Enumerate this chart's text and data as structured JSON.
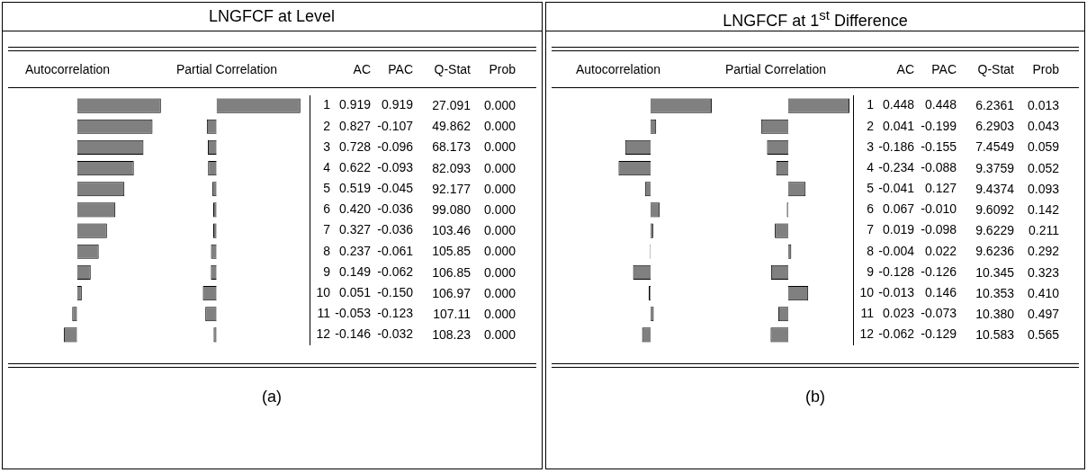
{
  "chart_data": [
    {
      "type": "bar",
      "orientation": "horizontal",
      "title": "Autocorrelation",
      "categories": [
        "1",
        "2",
        "3",
        "4",
        "5",
        "6",
        "7",
        "8",
        "9",
        "10",
        "11",
        "12"
      ],
      "tick_labels": "y",
      "legend": false,
      "series": [
        {
          "name": "AC",
          "color": "#808080",
          "values": [
            0.919,
            0.827,
            0.728,
            0.622,
            0.519,
            0.42,
            0.327,
            0.237,
            0.149,
            0.051,
            -0.053,
            -0.146
          ],
          "value_labels": [
            "0.919",
            "0.827",
            "0.728",
            "0.622",
            "0.519",
            "0.420",
            "0.327",
            "0.237",
            "0.149",
            "0.051",
            "-0.053",
            "-0.146"
          ]
        }
      ]
    },
    {
      "type": "bar",
      "orientation": "horizontal",
      "title": "Partial Correlation",
      "categories": [
        "1",
        "2",
        "3",
        "4",
        "5",
        "6",
        "7",
        "8",
        "9",
        "10",
        "11",
        "12"
      ],
      "tick_labels": false,
      "legend": false,
      "series": [
        {
          "name": "PAC",
          "color": "#808080",
          "values": [
            0.919,
            -0.107,
            -0.096,
            -0.093,
            -0.045,
            -0.036,
            -0.036,
            -0.061,
            -0.062,
            -0.15,
            -0.123,
            -0.032
          ],
          "value_labels": [
            "0.919",
            "-0.107",
            "-0.096",
            "-0.093",
            "-0.045",
            "-0.036",
            "-0.036",
            "-0.061",
            "-0.062",
            "-0.150",
            "-0.123",
            "-0.032"
          ]
        }
      ]
    },
    {
      "type": "other",
      "title": "LNGFCF at Level",
      "annotations": [
        "(a)",
        "Q-Stat",
        "27.091",
        "49.862",
        "68.173",
        "82.093",
        "92.177",
        "99.080",
        "103.46",
        "105.85",
        "106.85",
        "106.97",
        "107.11",
        "108.23",
        "Prob",
        "0.000",
        "0.000",
        "0.000",
        "0.000",
        "0.000",
        "0.000",
        "0.000",
        "0.000",
        "0.000",
        "0.000",
        "0.000",
        "0.000"
      ]
    },
    {
      "type": "bar",
      "orientation": "horizontal",
      "title": "Autocorrelation",
      "categories": [
        "1",
        "2",
        "3",
        "4",
        "5",
        "6",
        "7",
        "8",
        "9",
        "10",
        "11",
        "12"
      ],
      "tick_labels": "y",
      "legend": false,
      "series": [
        {
          "name": "AC",
          "color": "#808080",
          "values": [
            0.448,
            0.041,
            -0.186,
            -0.234,
            -0.041,
            0.067,
            0.019,
            -0.004,
            -0.128,
            -0.013,
            0.023,
            -0.062
          ],
          "value_labels": [
            "0.448",
            "0.041",
            "-0.186",
            "-0.234",
            "-0.041",
            "0.067",
            "0.019",
            "-0.004",
            "-0.128",
            "-0.013",
            "0.023",
            "-0.062"
          ]
        }
      ]
    },
    {
      "type": "bar",
      "orientation": "horizontal",
      "title": "Partial Correlation",
      "categories": [
        "1",
        "2",
        "3",
        "4",
        "5",
        "6",
        "7",
        "8",
        "9",
        "10",
        "11",
        "12"
      ],
      "tick_labels": false,
      "legend": false,
      "series": [
        {
          "name": "PAC",
          "color": "#808080",
          "values": [
            0.448,
            -0.199,
            -0.155,
            -0.088,
            0.127,
            -0.01,
            -0.098,
            0.022,
            -0.126,
            0.146,
            -0.073,
            -0.129
          ],
          "value_labels": [
            "0.448",
            "-0.199",
            "-0.155",
            "-0.088",
            "0.127",
            "-0.010",
            "-0.098",
            "0.022",
            "-0.126",
            "0.146",
            "-0.073",
            "-0.129"
          ]
        }
      ]
    },
    {
      "type": "other",
      "title": "LNGFCF at 1$^{st}$ Difference",
      "annotations": [
        "(b)",
        "Q-Stat",
        "6.2361",
        "6.2903",
        "7.4549",
        "9.3759",
        "9.4374",
        "9.6092",
        "9.6229",
        "9.6236",
        "10.345",
        "10.353",
        "10.380",
        "10.583",
        "Prob",
        "0.013",
        "0.043",
        "0.059",
        "0.052",
        "0.093",
        "0.142",
        "0.211",
        "0.292",
        "0.323",
        "0.410",
        "0.497",
        "0.565"
      ]
    }
  ]
}
